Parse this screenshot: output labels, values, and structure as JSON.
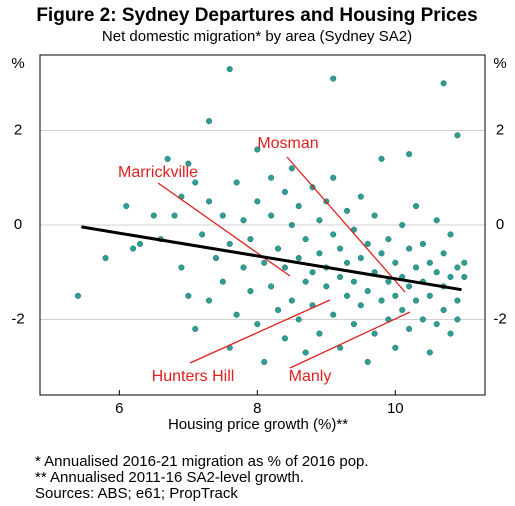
{
  "chart_data": {
    "type": "scatter",
    "title": "Figure 2: Sydney Departures and Housing Prices",
    "subtitle": "Net domestic migration* by area (Sydney SA2)",
    "x_label": "Housing price growth (%)**",
    "y_unit": "%",
    "color": "#2e9e92",
    "trend_color": "#000000",
    "annotation_color": "#e0201e",
    "grid": true,
    "xlim": [
      4.85,
      11.3
    ],
    "ylim": [
      -3.6,
      3.6
    ],
    "xticks": [
      6,
      8,
      10
    ],
    "yticks": [
      -2,
      0,
      2
    ],
    "x": [
      5.4,
      7.6,
      7.3,
      9.1,
      10.7,
      10.9,
      10.2,
      5.8,
      6.1,
      6.2,
      6.3,
      6.5,
      6.6,
      6.7,
      6.8,
      6.9,
      6.9,
      7.0,
      7.1,
      7.0,
      7.1,
      7.2,
      7.3,
      7.3,
      7.4,
      7.5,
      7.5,
      7.6,
      7.6,
      7.7,
      7.7,
      7.8,
      7.8,
      7.9,
      7.9,
      8.0,
      8.0,
      8.0,
      8.1,
      8.1,
      8.2,
      8.2,
      8.2,
      8.3,
      8.3,
      8.4,
      8.4,
      8.4,
      8.5,
      8.5,
      8.5,
      8.6,
      8.6,
      8.6,
      8.7,
      8.7,
      8.7,
      8.8,
      8.8,
      8.8,
      8.9,
      8.9,
      8.9,
      9.0,
      9.0,
      9.0,
      9.1,
      9.1,
      9.1,
      9.2,
      9.2,
      9.2,
      9.3,
      9.3,
      9.3,
      9.4,
      9.4,
      9.4,
      9.5,
      9.5,
      9.5,
      9.6,
      9.6,
      9.6,
      9.7,
      9.7,
      9.7,
      9.8,
      9.8,
      9.8,
      9.9,
      9.9,
      9.9,
      10.0,
      10.0,
      10.0,
      10.1,
      10.1,
      10.1,
      10.2,
      10.2,
      10.2,
      10.3,
      10.3,
      10.3,
      10.4,
      10.4,
      10.4,
      10.5,
      10.5,
      10.5,
      10.6,
      10.6,
      10.6,
      10.7,
      10.7,
      10.7,
      10.8,
      10.8,
      10.8,
      10.9,
      10.9,
      10.9,
      11.0,
      11.0
    ],
    "y": [
      -1.5,
      3.3,
      2.2,
      3.1,
      3.0,
      1.9,
      1.5,
      -0.7,
      0.4,
      -0.5,
      -0.4,
      0.2,
      -0.3,
      1.4,
      0.2,
      -0.9,
      0.6,
      1.3,
      0.9,
      -1.5,
      -2.2,
      -0.2,
      0.5,
      -1.6,
      -0.7,
      -1.2,
      0.2,
      -2.6,
      -0.4,
      0.9,
      -1.9,
      -0.9,
      0.1,
      -1.4,
      -0.3,
      1.6,
      -2.1,
      0.5,
      -0.8,
      -2.9,
      0.2,
      -1.3,
      1.0,
      -0.5,
      -1.8,
      0.7,
      -2.4,
      -0.9,
      0.0,
      -1.6,
      1.2,
      -0.7,
      -2.0,
      0.4,
      -1.2,
      -0.3,
      -2.7,
      0.8,
      -1.0,
      -1.7,
      0.1,
      -0.6,
      -2.3,
      -1.3,
      0.5,
      -0.9,
      -1.9,
      -0.2,
      1.0,
      -1.1,
      -2.6,
      -0.5,
      -1.5,
      0.3,
      -0.8,
      -2.1,
      -1.2,
      -0.1,
      -0.7,
      -1.7,
      0.6,
      -1.4,
      -2.9,
      -0.4,
      -1.0,
      -2.3,
      0.2,
      -1.6,
      -0.6,
      1.4,
      -1.2,
      -2.0,
      -0.3,
      -1.5,
      -0.8,
      -2.6,
      -1.1,
      0.0,
      -1.8,
      -0.5,
      -2.2,
      -1.3,
      -0.9,
      -1.6,
      0.4,
      -2.0,
      -1.2,
      -0.4,
      -2.7,
      -1.5,
      -0.8,
      -1.0,
      -2.1,
      0.1,
      -1.3,
      -0.6,
      -1.8,
      -1.1,
      -2.3,
      -0.2,
      -0.9,
      -1.6,
      -2.0,
      -0.8,
      -1.1
    ],
    "trend": {
      "x": [
        5.45,
        10.96
      ],
      "y": [
        -0.04,
        -1.37
      ]
    },
    "annotations": [
      "Mosman",
      "Marrickville",
      "Hunters Hill",
      "Manly"
    ],
    "footnotes": [
      "* Annualised 2016-21 migration as % of 2016 pop.",
      "** Annualised 2011-16 SA2-level growth.",
      "Sources: ABS; e61; PropTrack"
    ]
  }
}
